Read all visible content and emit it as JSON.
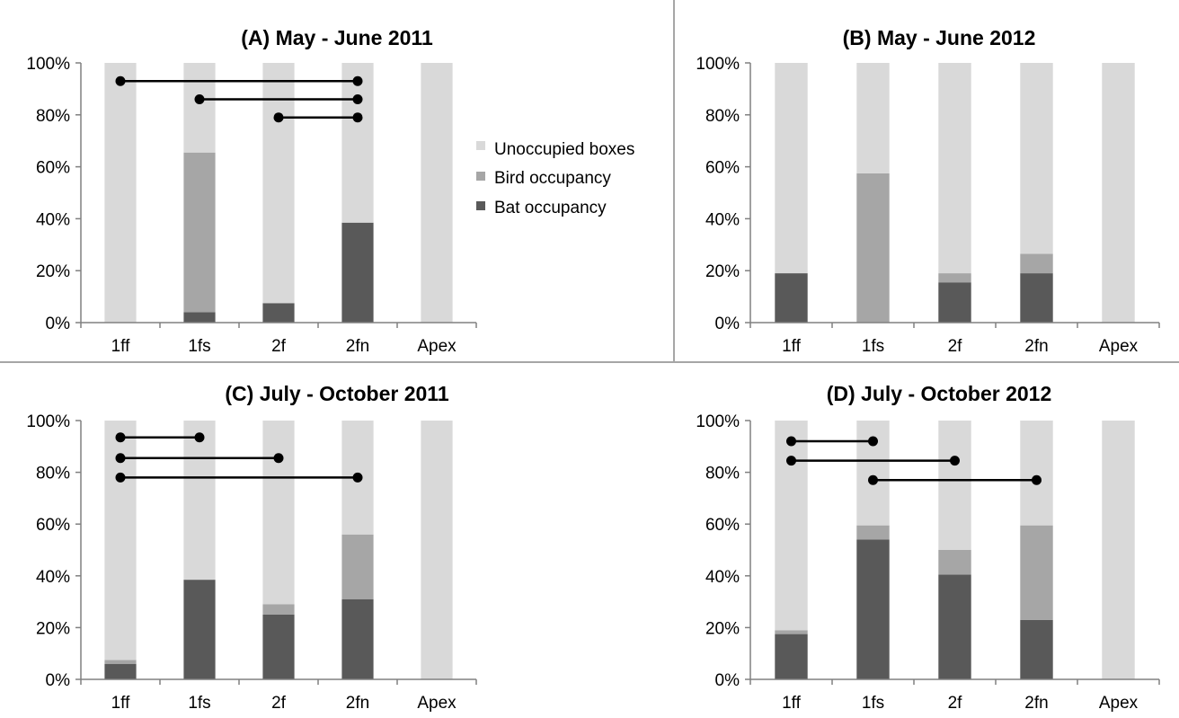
{
  "colors": {
    "unoccupied": "#d9d9d9",
    "bird": "#a6a6a6",
    "bat": "#595959",
    "axis": "#808080",
    "divider": "#a6a6a6",
    "bracket": "#000000"
  },
  "legend": {
    "entries": [
      "Unoccupied boxes",
      "Bird occupancy",
      "Bat occupancy"
    ]
  },
  "chart_data": [
    {
      "type": "bar",
      "stacked": true,
      "title": "(A) May - June 2011",
      "categories": [
        "1ff",
        "1fs",
        "2f",
        "2fn",
        "Apex"
      ],
      "ylim": [
        0,
        100
      ],
      "yticks": [
        "0%",
        "20%",
        "40%",
        "60%",
        "80%",
        "100%"
      ],
      "series": [
        {
          "name": "Bat occupancy",
          "values": [
            0,
            4,
            7.5,
            38.5,
            0
          ]
        },
        {
          "name": "Bird occupancy",
          "values": [
            0,
            61.5,
            0,
            0,
            0
          ]
        },
        {
          "name": "Unoccupied boxes",
          "values": [
            100,
            34.5,
            92.5,
            61.5,
            100
          ]
        }
      ],
      "brackets": [
        {
          "from": "1ff",
          "to": "2fn",
          "y": 93
        },
        {
          "from": "1fs",
          "to": "2fn",
          "y": 86
        },
        {
          "from": "2f",
          "to": "2fn",
          "y": 79
        }
      ]
    },
    {
      "type": "bar",
      "stacked": true,
      "title": "(B) May - June 2012",
      "categories": [
        "1ff",
        "1fs",
        "2f",
        "2fn",
        "Apex"
      ],
      "ylim": [
        0,
        100
      ],
      "yticks": [
        "0%",
        "20%",
        "40%",
        "60%",
        "80%",
        "100%"
      ],
      "series": [
        {
          "name": "Bat occupancy",
          "values": [
            19,
            0,
            15.5,
            19,
            0
          ]
        },
        {
          "name": "Bird occupancy",
          "values": [
            0,
            57.5,
            3.5,
            7.5,
            0
          ]
        },
        {
          "name": "Unoccupied boxes",
          "values": [
            81,
            42.5,
            81,
            73.5,
            100
          ]
        }
      ],
      "brackets": []
    },
    {
      "type": "bar",
      "stacked": true,
      "title": "(C) July - October 2011",
      "categories": [
        "1ff",
        "1fs",
        "2f",
        "2fn",
        "Apex"
      ],
      "ylim": [
        0,
        100
      ],
      "yticks": [
        "0%",
        "20%",
        "40%",
        "60%",
        "80%",
        "100%"
      ],
      "series": [
        {
          "name": "Bat occupancy",
          "values": [
            6,
            38.5,
            25,
            31,
            0
          ]
        },
        {
          "name": "Bird occupancy",
          "values": [
            1.5,
            0,
            4,
            25,
            0
          ]
        },
        {
          "name": "Unoccupied boxes",
          "values": [
            92.5,
            61.5,
            71,
            44,
            100
          ]
        }
      ],
      "brackets": [
        {
          "from": "1ff",
          "to": "1fs",
          "y": 93.5
        },
        {
          "from": "1ff",
          "to": "2f",
          "y": 85.5
        },
        {
          "from": "1ff",
          "to": "2fn",
          "y": 78
        }
      ]
    },
    {
      "type": "bar",
      "stacked": true,
      "title": "(D) July - October 2012",
      "categories": [
        "1ff",
        "1fs",
        "2f",
        "2fn",
        "Apex"
      ],
      "ylim": [
        0,
        100
      ],
      "yticks": [
        "0%",
        "20%",
        "40%",
        "60%",
        "80%",
        "100%"
      ],
      "series": [
        {
          "name": "Bat occupancy",
          "values": [
            17.5,
            54,
            40.5,
            23,
            0
          ]
        },
        {
          "name": "Bird occupancy",
          "values": [
            1.5,
            5.5,
            9.5,
            36.5,
            0
          ]
        },
        {
          "name": "Unoccupied boxes",
          "values": [
            81,
            40.5,
            50,
            40.5,
            100
          ]
        }
      ],
      "brackets": [
        {
          "from": "1ff",
          "to": "1fs",
          "y": 92
        },
        {
          "from": "1ff",
          "to": "2f",
          "y": 84.5
        },
        {
          "from": "1fs",
          "to": "2fn",
          "y": 77
        }
      ]
    }
  ]
}
